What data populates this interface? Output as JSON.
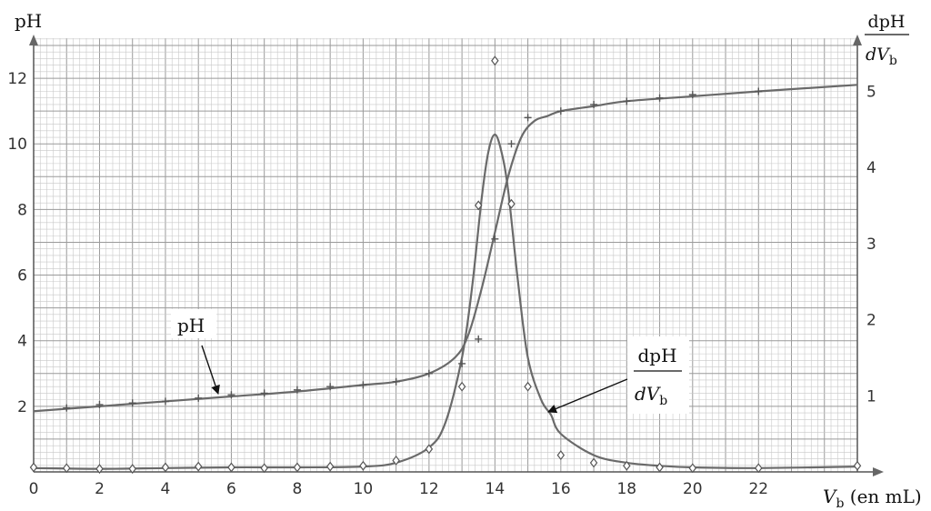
{
  "chart_data": {
    "type": "line",
    "xlabel": {
      "main": "V",
      "sub": "b",
      "unit": " (en mL)"
    },
    "ylabel_left": "pH",
    "ylabel_right": {
      "top": "dpH",
      "bottom_main": "dV",
      "bottom_sub": "b"
    },
    "xlim": [
      0,
      25
    ],
    "ylim_left": [
      0,
      13
    ],
    "ylim_right": [
      0,
      5.6
    ],
    "x_ticks": [
      "0",
      "2",
      "4",
      "6",
      "8",
      "10",
      "12",
      "14",
      "16",
      "18",
      "20",
      "22"
    ],
    "y_left_ticks": [
      "2",
      "4",
      "6",
      "8",
      "10",
      "12"
    ],
    "y_right_ticks": [
      "1",
      "2",
      "3",
      "4",
      "5"
    ],
    "grid": true,
    "series": [
      {
        "name": "pH",
        "axis": "left",
        "marker": "plus",
        "points": {
          "x": [
            1,
            2,
            3,
            4,
            5,
            6,
            7,
            8,
            9,
            10,
            11,
            12,
            13,
            13.5,
            14,
            14.5,
            15,
            16,
            17,
            18,
            19,
            20,
            22
          ],
          "y": [
            1.95,
            2.05,
            2.1,
            2.15,
            2.25,
            2.35,
            2.4,
            2.5,
            2.6,
            2.65,
            2.75,
            3.0,
            3.3,
            4.05,
            7.1,
            10.0,
            10.8,
            11.0,
            11.2,
            11.3,
            11.4,
            11.5,
            11.6
          ]
        },
        "curve": {
          "x": [
            0,
            2,
            4,
            6,
            8,
            10,
            11,
            12,
            12.8,
            13.2,
            13.6,
            14.0,
            14.4,
            14.8,
            15.2,
            15.6,
            16,
            17,
            18,
            20,
            22,
            25
          ],
          "y": [
            1.85,
            2.0,
            2.15,
            2.3,
            2.45,
            2.65,
            2.75,
            3.0,
            3.5,
            4.2,
            5.6,
            7.3,
            9.0,
            10.2,
            10.7,
            10.85,
            11.0,
            11.15,
            11.3,
            11.45,
            11.6,
            11.8
          ]
        }
      },
      {
        "name": "dpH/dVb",
        "axis": "right",
        "marker": "diamond",
        "points": {
          "x": [
            0,
            1,
            2,
            3,
            4,
            5,
            6,
            7,
            8,
            9,
            10,
            11,
            12,
            13,
            13.5,
            14,
            14.5,
            15,
            16,
            17,
            18,
            19,
            20,
            22,
            25
          ],
          "y": [
            0.06,
            0.05,
            0.04,
            0.04,
            0.06,
            0.07,
            0.06,
            0.05,
            0.06,
            0.07,
            0.08,
            0.15,
            0.3,
            1.12,
            3.5,
            5.4,
            3.52,
            1.12,
            0.22,
            0.12,
            0.08,
            0.06,
            0.05,
            0.05,
            0.08
          ]
        },
        "curve": {
          "x": [
            0,
            2,
            4,
            6,
            8,
            10,
            11,
            12,
            12.5,
            13,
            13.3,
            13.6,
            13.8,
            14.0,
            14.2,
            14.4,
            14.7,
            15.0,
            15.4,
            15.7,
            16,
            17,
            18,
            19,
            20,
            22,
            25
          ],
          "y": [
            0.05,
            0.04,
            0.05,
            0.06,
            0.06,
            0.07,
            0.12,
            0.32,
            0.65,
            1.5,
            2.4,
            3.6,
            4.2,
            4.43,
            4.2,
            3.7,
            2.5,
            1.5,
            0.95,
            0.75,
            0.5,
            0.22,
            0.12,
            0.08,
            0.06,
            0.05,
            0.07
          ]
        }
      }
    ],
    "annotations": [
      {
        "id": "ph",
        "text": "pH"
      },
      {
        "id": "deriv",
        "top": "dpH",
        "bottom_main": "dV",
        "bottom_sub": "b"
      }
    ]
  }
}
